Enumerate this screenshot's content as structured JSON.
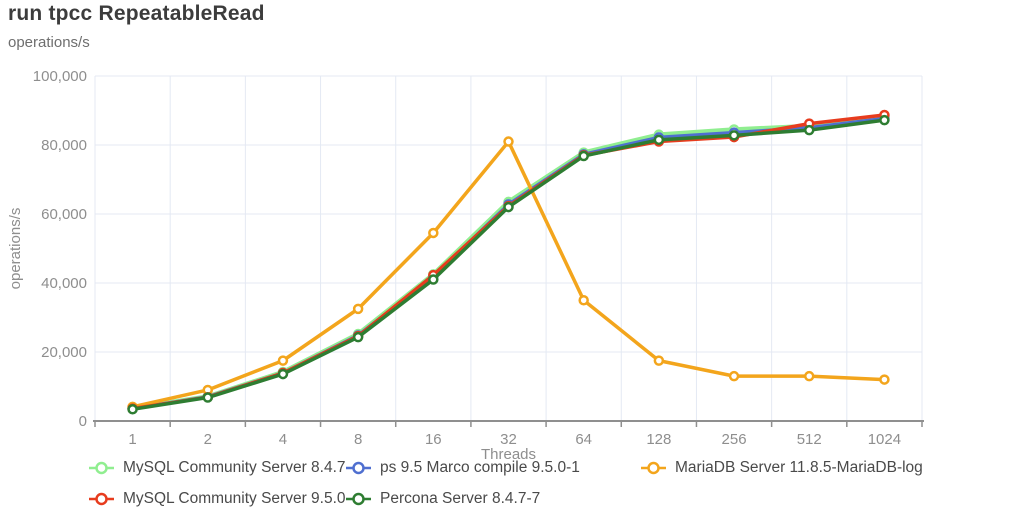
{
  "title": "run tpcc RepeatableRead",
  "units_label": "operations/s",
  "chart_data": {
    "type": "line",
    "title": "run tpcc RepeatableRead",
    "xlabel": "Threads",
    "ylabel": "operations/s",
    "categories": [
      "1",
      "2",
      "4",
      "8",
      "16",
      "32",
      "64",
      "128",
      "256",
      "512",
      "1024"
    ],
    "ylim": [
      0,
      100000
    ],
    "ytick_step": 20000,
    "ytick_labels": [
      "0",
      "20,000",
      "40,000",
      "60,000",
      "80,000",
      "100,000"
    ],
    "grid": true,
    "legend_position": "bottom",
    "marker": "hollow-circle",
    "series": [
      {
        "name": "MySQL Community Server 8.4.7",
        "color": "#90ee90",
        "values": [
          3700,
          7100,
          14200,
          25200,
          42500,
          63500,
          77800,
          83000,
          84500,
          85500,
          88400
        ]
      },
      {
        "name": "ps 9.5 Marco compile 9.5.0-1",
        "color": "#4f6fd0",
        "values": [
          3600,
          7000,
          13900,
          24800,
          41800,
          62800,
          77300,
          82200,
          83600,
          85000,
          87700
        ]
      },
      {
        "name": "MariaDB Server 11.8.5-MariaDB-log",
        "color": "#f3a51c",
        "values": [
          4100,
          9000,
          17500,
          32500,
          54500,
          81000,
          35000,
          17500,
          13000,
          13000,
          12000
        ]
      },
      {
        "name": "MySQL Community Server 9.5.0",
        "color": "#e73c1e",
        "values": [
          3600,
          6900,
          13900,
          24600,
          42300,
          62300,
          77000,
          81000,
          82300,
          86200,
          88700
        ]
      },
      {
        "name": "Percona Server 8.4.7-7",
        "color": "#2e7d32",
        "values": [
          3400,
          6800,
          13600,
          24300,
          41000,
          62000,
          76800,
          81500,
          82800,
          84300,
          87200
        ]
      }
    ],
    "colors": {
      "grid_line": "#e4e9f3",
      "axis_line": "#8f8f8f",
      "tick_label": "#8e8e8e",
      "axis_title": "#8e8e8e"
    }
  }
}
